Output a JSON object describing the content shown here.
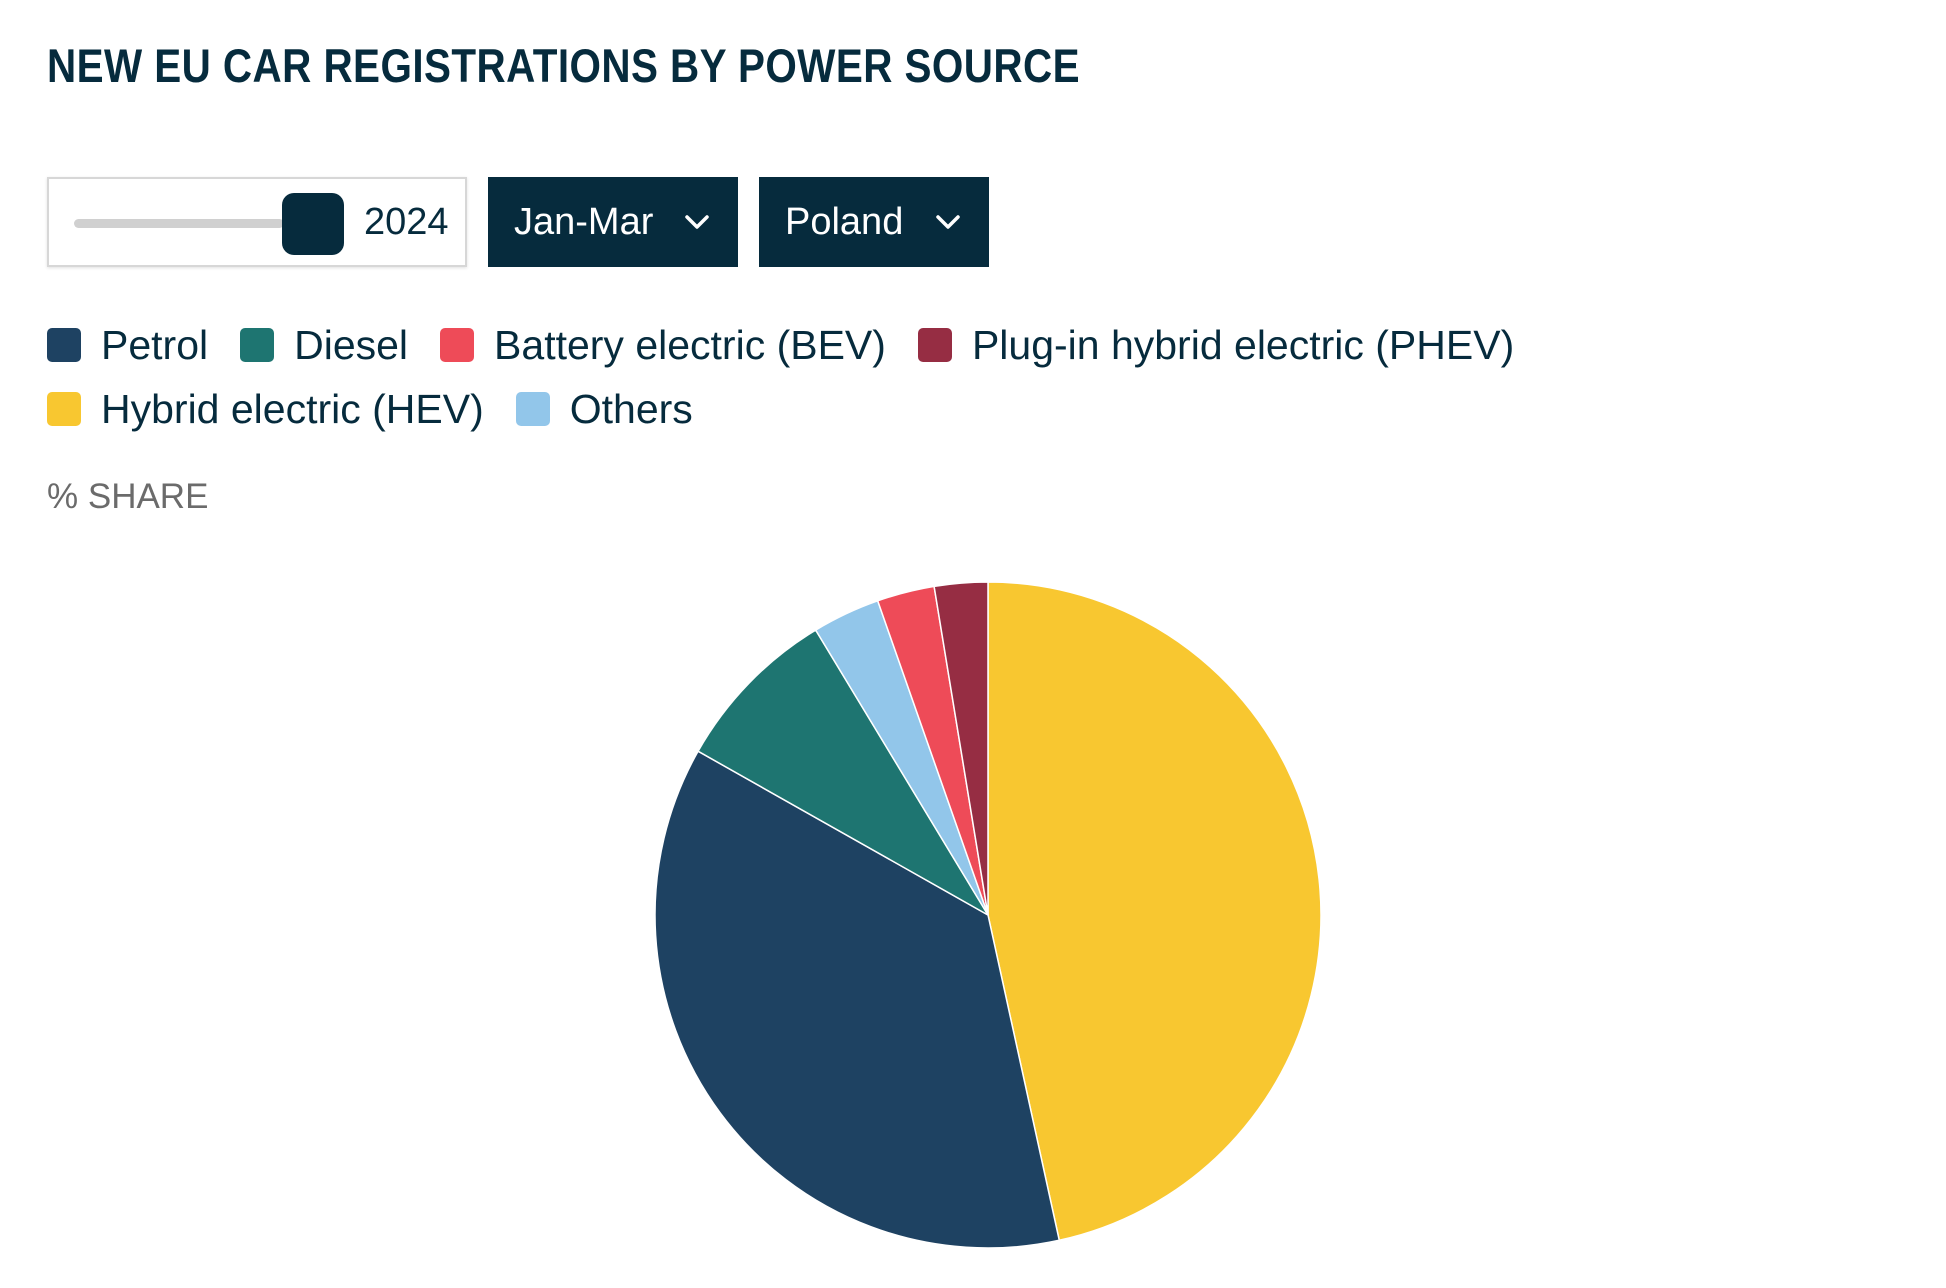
{
  "title": "NEW EU CAR REGISTRATIONS BY POWER SOURCE",
  "controls": {
    "year_slider": {
      "value": "2024"
    },
    "period_dropdown": {
      "selected": "Jan-Mar"
    },
    "country_dropdown": {
      "selected": "Poland"
    }
  },
  "unit_label": "% SHARE",
  "colors": {
    "petrol": "#1e4262",
    "diesel": "#1e7571",
    "bev": "#ee4b58",
    "phev": "#962d43",
    "hev": "#f8c730",
    "others": "#92c6ea"
  },
  "chart_data": {
    "type": "pie",
    "title": "NEW EU CAR REGISTRATIONS BY POWER SOURCE",
    "unit": "% SHARE",
    "legend_position": "top",
    "slices": [
      {
        "label": "Hybrid electric (HEV)",
        "value": 46.8
      },
      {
        "label": "Petrol",
        "value": 36.8
      },
      {
        "label": "Diesel",
        "value": 8.2
      },
      {
        "label": "Others",
        "value": 3.3
      },
      {
        "label": "Battery electric (BEV)",
        "value": 2.8
      },
      {
        "label": "Plug-in hybrid electric (PHEV)",
        "value": 2.6
      }
    ],
    "legend": [
      {
        "label": "Petrol",
        "color": "#1e4262"
      },
      {
        "label": "Diesel",
        "color": "#1e7571"
      },
      {
        "label": "Battery electric (BEV)",
        "color": "#ee4b58"
      },
      {
        "label": "Plug-in hybrid electric (PHEV)",
        "color": "#962d43"
      },
      {
        "label": "Hybrid electric (HEV)",
        "color": "#f8c730"
      },
      {
        "label": "Others",
        "color": "#92c6ea"
      }
    ]
  }
}
